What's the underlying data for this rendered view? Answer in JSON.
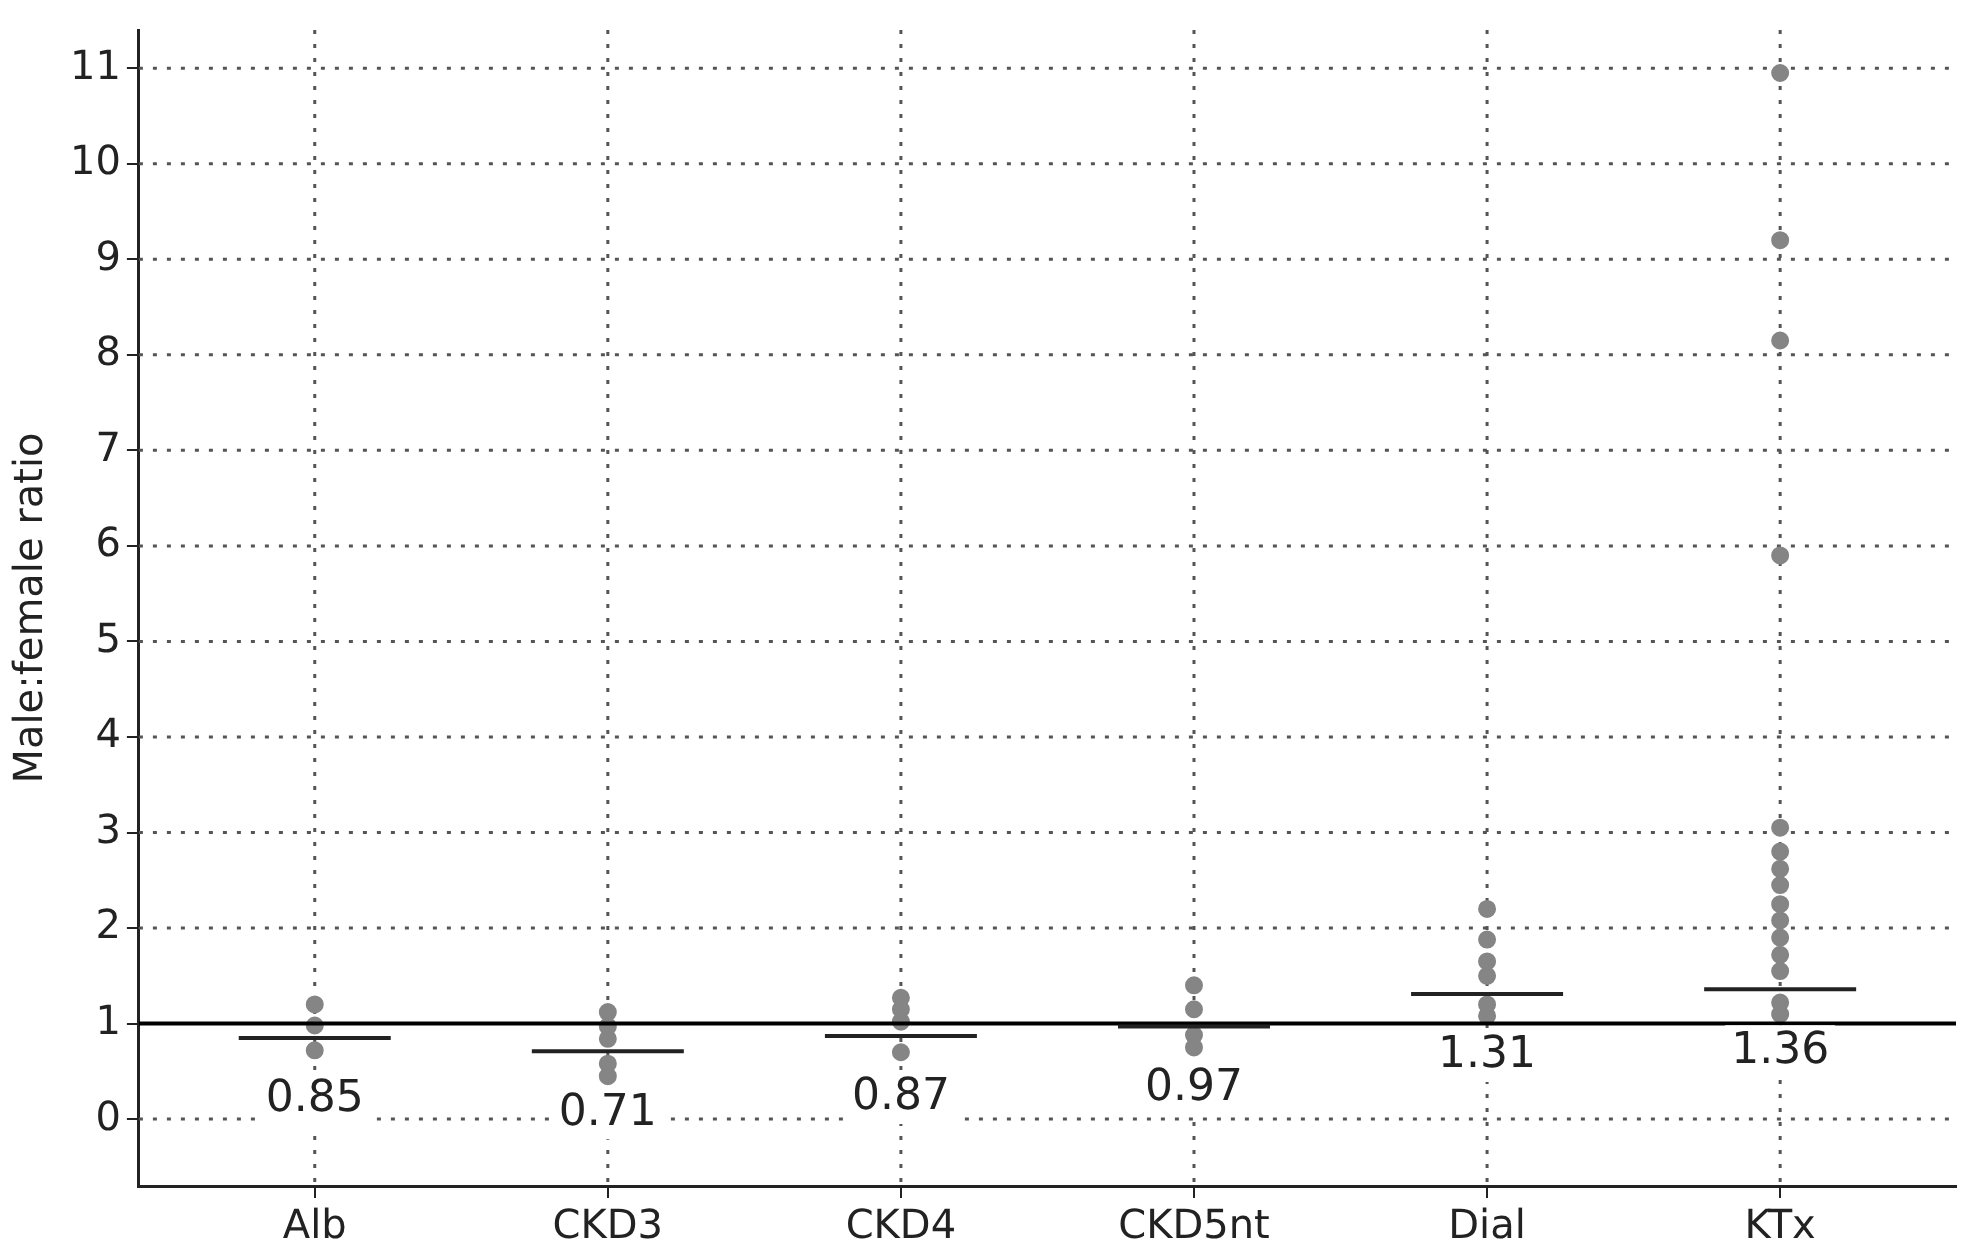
{
  "chart_data": {
    "type": "scatter",
    "ylabel": "Male:female ratio",
    "categories": [
      "Alb",
      "CKD3",
      "CKD4",
      "CKD5nt",
      "Dial",
      "KTx"
    ],
    "series": [
      {
        "color": "#858585",
        "x": [
          "Alb",
          "Alb",
          "Alb"
        ],
        "values": [
          0.72,
          0.98,
          1.2
        ]
      },
      {
        "color": "#858585",
        "x": [
          "CKD3",
          "CKD3",
          "CKD3",
          "CKD3",
          "CKD3"
        ],
        "values": [
          0.45,
          0.58,
          0.84,
          0.97,
          1.12
        ]
      },
      {
        "color": "#858585",
        "x": [
          "CKD4",
          "CKD4",
          "CKD4",
          "CKD4"
        ],
        "values": [
          0.7,
          1.02,
          1.15,
          1.27
        ]
      },
      {
        "color": "#858585",
        "x": [
          "CKD5nt",
          "CKD5nt",
          "CKD5nt",
          "CKD5nt"
        ],
        "values": [
          0.75,
          0.88,
          1.15,
          1.4
        ]
      },
      {
        "color": "#858585",
        "x": [
          "Dial",
          "Dial",
          "Dial",
          "Dial",
          "Dial",
          "Dial"
        ],
        "values": [
          1.08,
          1.2,
          1.5,
          1.65,
          1.88,
          2.2
        ]
      },
      {
        "color": "#858585",
        "x": [
          "KTx",
          "KTx",
          "KTx",
          "KTx",
          "KTx",
          "KTx",
          "KTx",
          "KTx",
          "KTx",
          "KTx",
          "KTx",
          "KTx",
          "KTx",
          "KTx",
          "KTx"
        ],
        "values": [
          1.1,
          1.22,
          1.55,
          1.72,
          1.9,
          2.08,
          2.25,
          2.45,
          2.62,
          2.8,
          3.05,
          5.9,
          8.15,
          9.2,
          10.95
        ]
      }
    ],
    "ylim": [
      -0.7,
      11.4
    ],
    "yticks": [
      0,
      1,
      2,
      3,
      4,
      5,
      6,
      7,
      8,
      9,
      10,
      11
    ],
    "grid": true,
    "marker": "circle",
    "legend": false,
    "ref_lines": [
      {
        "axis": "y",
        "value": 1,
        "color": "#000000"
      }
    ],
    "annotations": [
      {
        "text": "0.85",
        "x": "Alb",
        "y": 0.85
      },
      {
        "text": "0.71",
        "x": "CKD3",
        "y": 0.71
      },
      {
        "text": "0.87",
        "x": "CKD4",
        "y": 0.87
      },
      {
        "text": "0.97",
        "x": "CKD5nt",
        "y": 0.97
      },
      {
        "text": "1.31",
        "x": "Dial",
        "y": 1.31
      },
      {
        "text": "1.36",
        "x": "KTx",
        "y": 1.36
      }
    ]
  }
}
